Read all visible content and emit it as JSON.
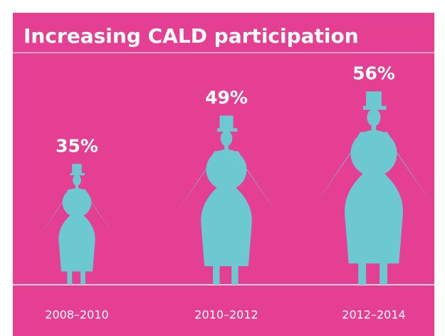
{
  "chart_data": {
    "type": "pictogram",
    "title": "Increasing CALD participation",
    "categories": [
      "2008–2010",
      "2010–2012",
      "2012–2014"
    ],
    "values": [
      35,
      49,
      56
    ],
    "value_labels": [
      "35%",
      "49%",
      "56%"
    ],
    "color": "#6cc9d1"
  }
}
